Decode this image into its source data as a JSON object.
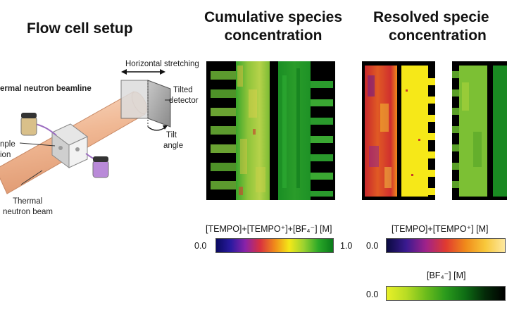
{
  "panels": {
    "setup": {
      "title": "Flow cell setup",
      "labels": {
        "horizontal_stretching": "Horizontal stretching",
        "beamline": "ermal neutron beamline",
        "tilted_detector_1": "Tilted",
        "tilted_detector_2": "detector",
        "tilt_angle_1": "Tilt",
        "tilt_angle_2": "angle",
        "sample_1": "nple",
        "sample_2": "ion",
        "thermal_beam_1": "Thermal",
        "thermal_beam_2": "neutron beam"
      }
    },
    "cumulative": {
      "title_line1": "Cumulative species",
      "title_line2": "concentration",
      "colorbar": {
        "label": "[TEMPO]+[TEMPO⁺]+[BF₄⁻] [M]",
        "min": "0.0",
        "max": "1.0",
        "min_value": 0.0,
        "max_value": 1.0,
        "colors": [
          "#0a0a60",
          "#2a1aa0",
          "#8a22a8",
          "#d83040",
          "#f08a1a",
          "#f4e818",
          "#9ad230",
          "#2aa828",
          "#0a7a1a"
        ]
      }
    },
    "resolved": {
      "title_line1": "Resolved specie",
      "title_line2": "concentration",
      "colorbar_tempo": {
        "label": "[TEMPO]+[TEMPO⁺] [M]",
        "min": "0.0",
        "min_value": 0.0,
        "colors": [
          "#0a0a40",
          "#3a1a90",
          "#a0228a",
          "#e03a30",
          "#f08a1a",
          "#f8c83a",
          "#fde8a0"
        ]
      },
      "colorbar_bf4": {
        "label": "[BF₄⁻] [M]",
        "min": "0.0",
        "min_value": 0.0,
        "colors": [
          "#e8f028",
          "#b8dc24",
          "#6cbc1c",
          "#2a9a1c",
          "#0e6c14",
          "#042a08",
          "#000000"
        ]
      }
    }
  }
}
